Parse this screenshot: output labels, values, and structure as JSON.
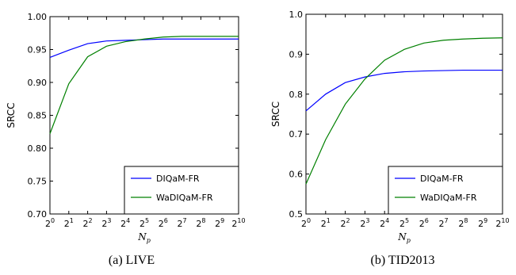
{
  "chart_data": [
    {
      "type": "line",
      "caption": "(a)  LIVE",
      "ylabel": "SRCC",
      "xlabel_main": "N",
      "xlabel_sub": "p",
      "xlim": [
        0,
        10
      ],
      "ylim": [
        0.7,
        1.0
      ],
      "yticks": [
        "0.70",
        "0.75",
        "0.80",
        "0.85",
        "0.90",
        "0.95",
        "1.00"
      ],
      "ytick_values": [
        0.7,
        0.75,
        0.8,
        0.85,
        0.9,
        0.95,
        1.0
      ],
      "xtick_base": "2",
      "xtick_exponents": [
        "0",
        "1",
        "2",
        "3",
        "4",
        "5",
        "6",
        "7",
        "8",
        "9",
        "10"
      ],
      "x": [
        0,
        1,
        2,
        3,
        4,
        5,
        6,
        7,
        8,
        9,
        10
      ],
      "legend_position": "lower-right",
      "grid": false,
      "series": [
        {
          "name": "DIQaM-FR",
          "color": "#0000ff",
          "values": [
            0.938,
            0.949,
            0.959,
            0.963,
            0.964,
            0.965,
            0.966,
            0.966,
            0.966,
            0.966,
            0.966
          ]
        },
        {
          "name": "WaDIQaM-FR",
          "color": "#008000",
          "values": [
            0.822,
            0.898,
            0.939,
            0.955,
            0.962,
            0.966,
            0.969,
            0.97,
            0.97,
            0.97,
            0.97
          ]
        }
      ]
    },
    {
      "type": "line",
      "caption": "(b)  TID2013",
      "ylabel": "SRCC",
      "xlabel_main": "N",
      "xlabel_sub": "p",
      "xlim": [
        0,
        10
      ],
      "ylim": [
        0.5,
        1.0
      ],
      "yticks": [
        "0.5",
        "0.6",
        "0.7",
        "0.8",
        "0.9",
        "1.0"
      ],
      "ytick_values": [
        0.5,
        0.6,
        0.7,
        0.8,
        0.9,
        1.0
      ],
      "xtick_base": "2",
      "xtick_exponents": [
        "0",
        "1",
        "2",
        "3",
        "4",
        "5",
        "6",
        "7",
        "8",
        "9",
        "10"
      ],
      "x": [
        0,
        1,
        2,
        3,
        4,
        5,
        6,
        7,
        8,
        9,
        10
      ],
      "legend_position": "lower-right",
      "grid": false,
      "series": [
        {
          "name": "DIQaM-FR",
          "color": "#0000ff",
          "values": [
            0.758,
            0.8,
            0.829,
            0.843,
            0.852,
            0.856,
            0.858,
            0.859,
            0.86,
            0.86,
            0.86
          ]
        },
        {
          "name": "WaDIQaM-FR",
          "color": "#008000",
          "values": [
            0.575,
            0.686,
            0.775,
            0.838,
            0.885,
            0.912,
            0.928,
            0.935,
            0.938,
            0.94,
            0.941
          ]
        }
      ]
    }
  ]
}
